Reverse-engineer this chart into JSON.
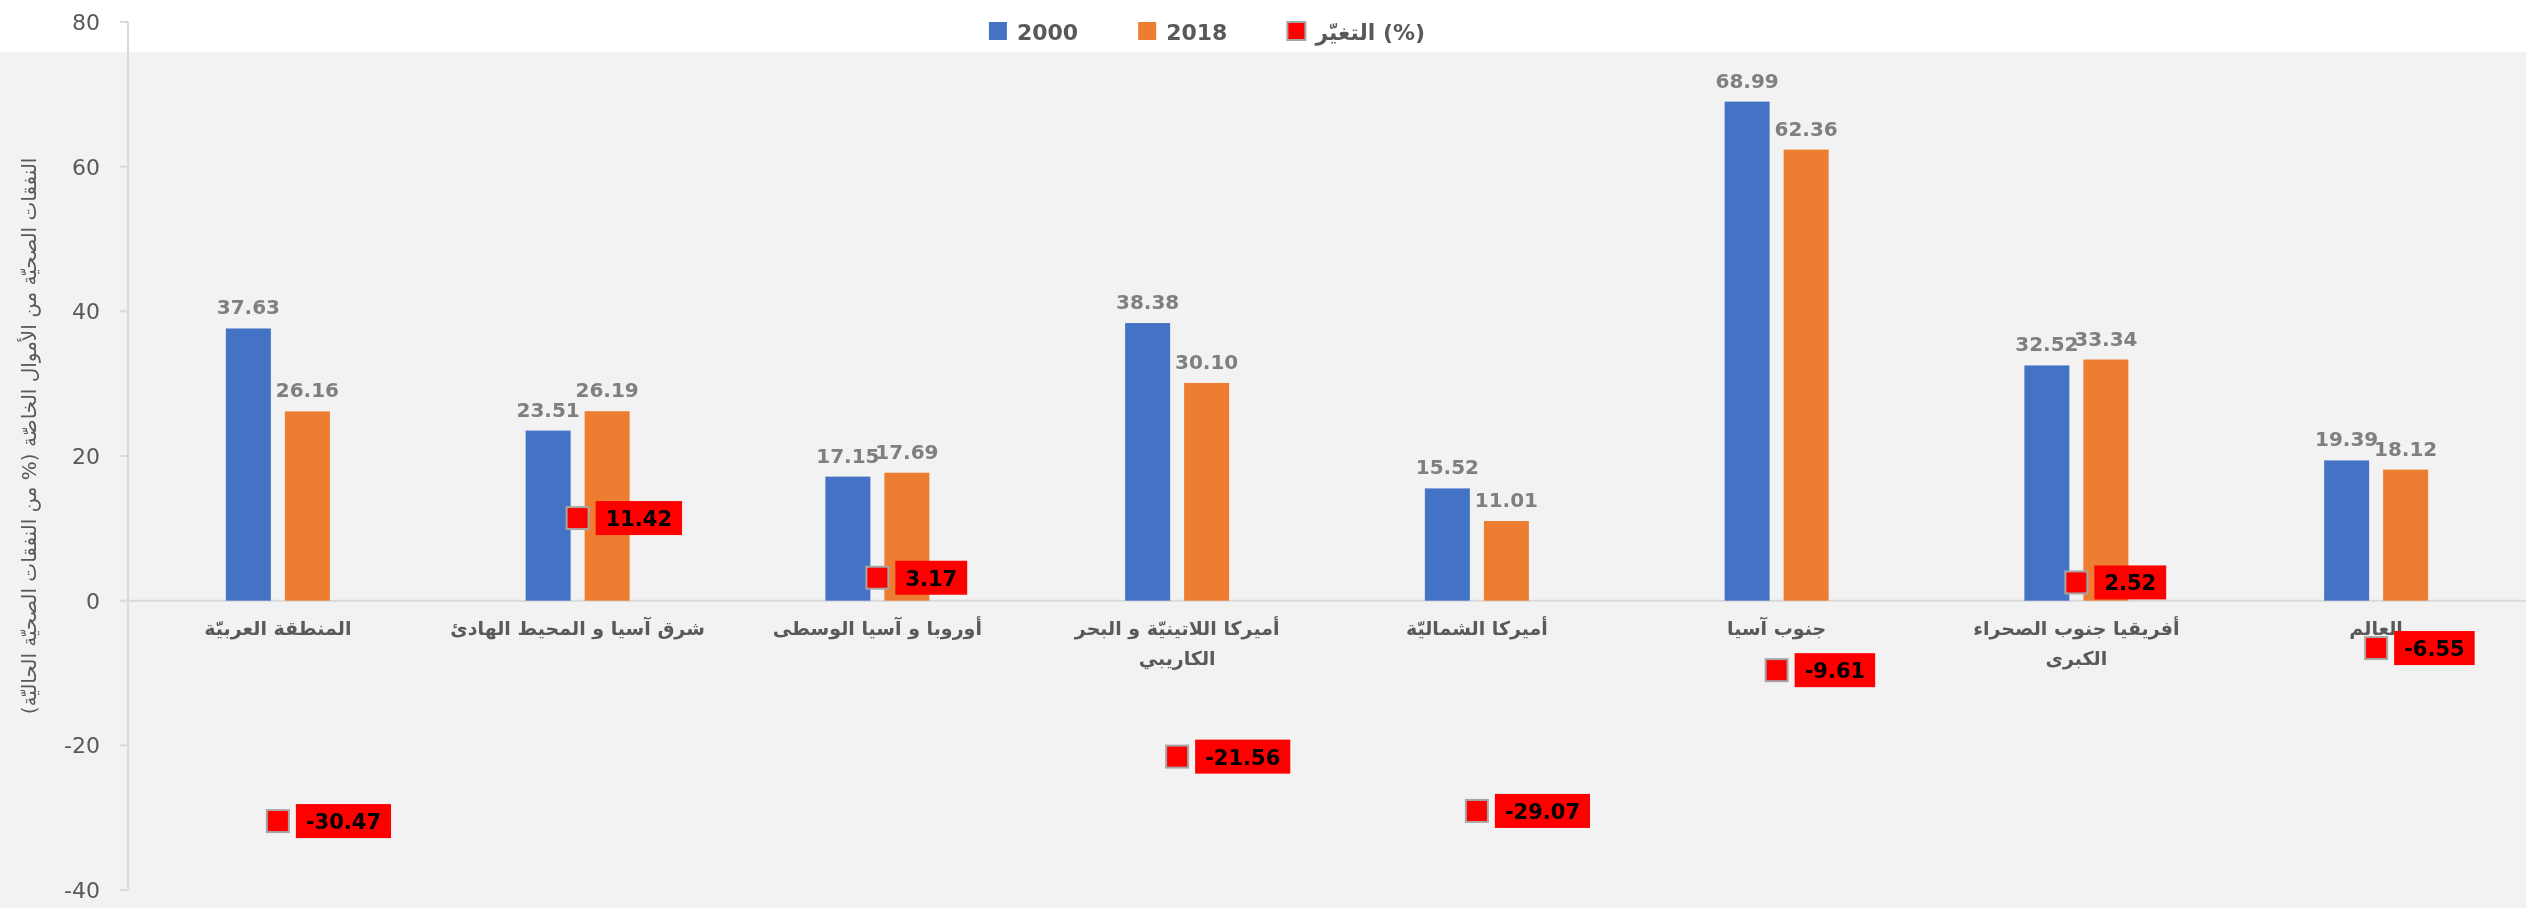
{
  "chart_data": {
    "type": "bar",
    "ylabel": "النفقات الصحيّة من الأموال الخاصّة (% من النفقات الصحيّة الحاليّة)",
    "categories": [
      "المنطقة العربيّة",
      "شرق آسيا و المحيط الهادئ",
      "أوروبا و آسيا الوسطى",
      "أميركا اللاتينيّة و البحر الكاريبي",
      "أميركا الشماليّة",
      "جنوب آسيا",
      "أفريقيا جنوب الصحراء الكبرى",
      "العالم"
    ],
    "ylim": [
      -40,
      80
    ],
    "yticks": [
      -40,
      -20,
      0,
      20,
      40,
      60,
      80
    ],
    "legend": "top",
    "grid": false,
    "series": [
      {
        "name": "2000",
        "color": "#4472c4",
        "values": [
          37.63,
          23.51,
          17.15,
          38.38,
          15.52,
          68.99,
          32.52,
          19.39
        ],
        "value_labels": [
          "37.63",
          "23.51",
          "17.15",
          "38.38",
          "15.52",
          "68.99",
          "32.52",
          "19.39"
        ]
      },
      {
        "name": "2018",
        "color": "#ed7d31",
        "values": [
          26.16,
          26.19,
          17.69,
          30.1,
          11.01,
          62.36,
          33.34,
          18.12
        ],
        "value_labels": [
          "26.16",
          "26.19",
          "17.69",
          "30.10",
          "11.01",
          "62.36",
          "33.34",
          "18.12"
        ]
      },
      {
        "name": "التغيّر (%)",
        "type": "scatter",
        "marker": "square",
        "color": "#ff0000",
        "values": [
          -30.47,
          11.42,
          3.17,
          -21.56,
          -29.07,
          -9.61,
          2.52,
          -6.55
        ],
        "value_labels": [
          "-30.47",
          "11.42",
          "3.17",
          "-21.56",
          "-29.07",
          "-9.61",
          "2.52",
          "-6.55"
        ]
      }
    ]
  }
}
